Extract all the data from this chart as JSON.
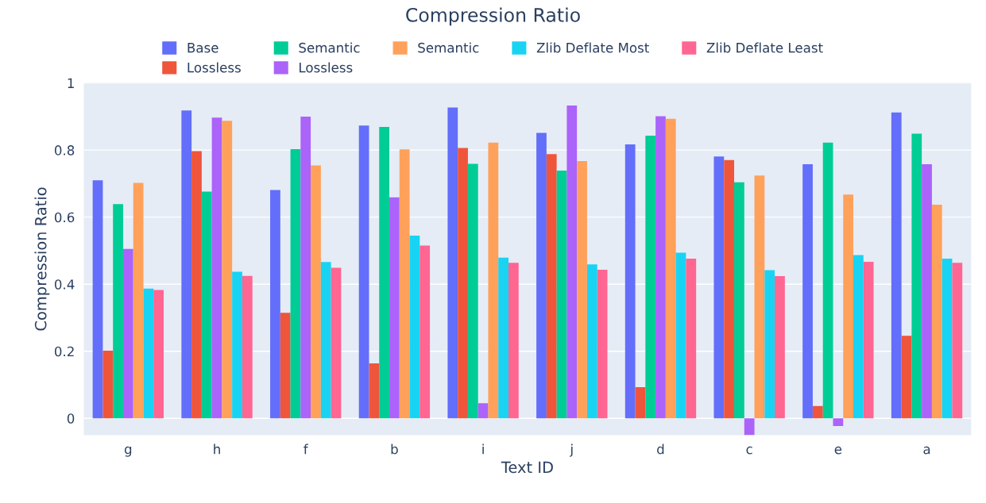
{
  "chart_data": {
    "type": "bar",
    "title": "Compression Ratio",
    "xlabel": "Text ID",
    "ylabel": "Compression Ratio",
    "categories": [
      "g",
      "h",
      "f",
      "b",
      "i",
      "j",
      "d",
      "c",
      "e",
      "a"
    ],
    "series": [
      {
        "name": "Base",
        "color": "#636efa",
        "values": [
          0.71,
          0.918,
          0.681,
          0.873,
          0.927,
          0.851,
          0.817,
          0.781,
          0.758,
          0.912
        ]
      },
      {
        "name": "Lossless",
        "color": "#ef553b",
        "values": [
          0.202,
          0.797,
          0.315,
          0.164,
          0.806,
          0.788,
          0.093,
          0.77,
          0.037,
          0.246
        ]
      },
      {
        "name": "Semantic",
        "color": "#00cc96",
        "values": [
          0.639,
          0.676,
          0.803,
          0.869,
          0.759,
          0.739,
          0.843,
          0.704,
          0.822,
          0.849
        ]
      },
      {
        "name": "Lossless",
        "color": "#ab63fa",
        "values": [
          0.505,
          0.897,
          0.9,
          0.659,
          0.045,
          0.933,
          0.901,
          -0.05,
          -0.023,
          0.758
        ]
      },
      {
        "name": "Semantic",
        "color": "#ffa15a",
        "values": [
          0.702,
          0.887,
          0.754,
          0.802,
          0.822,
          0.767,
          0.893,
          0.724,
          0.667,
          0.637
        ]
      },
      {
        "name": "Zlib Deflate Most",
        "color": "#19d3f3",
        "values": [
          0.387,
          0.437,
          0.466,
          0.545,
          0.479,
          0.459,
          0.494,
          0.442,
          0.487,
          0.476
        ]
      },
      {
        "name": "Zlib Deflate Least",
        "color": "#ff6692",
        "values": [
          0.383,
          0.425,
          0.449,
          0.515,
          0.464,
          0.443,
          0.476,
          0.424,
          0.467,
          0.464
        ]
      }
    ],
    "ylim": [
      -0.05,
      1.0
    ],
    "yticks": [
      0,
      0.2,
      0.4,
      0.6,
      0.8,
      1
    ],
    "grid": "y",
    "legend": "top"
  }
}
